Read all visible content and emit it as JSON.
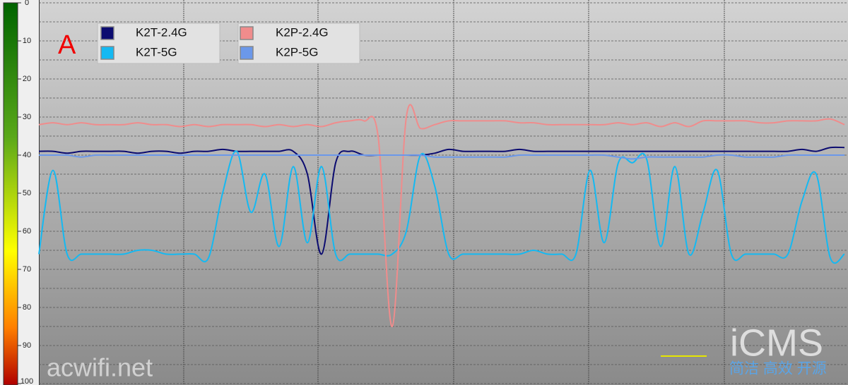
{
  "chart_data": {
    "type": "line",
    "annotation": "A",
    "watermarks": [
      "acwifi.net",
      "iCMS",
      "简洁 高效 开源"
    ],
    "x": [
      0,
      1,
      2,
      3,
      4,
      5,
      6,
      7,
      8,
      9,
      10,
      11,
      12,
      13,
      14,
      15,
      16,
      17,
      18,
      19,
      20,
      21,
      22,
      23,
      24,
      25,
      26,
      27,
      28,
      29,
      30,
      31,
      32,
      33,
      34,
      35,
      36,
      37,
      38,
      39,
      40,
      41,
      42,
      43,
      44,
      45,
      46,
      47,
      48,
      49,
      50,
      51,
      52,
      53,
      54,
      55,
      56,
      57
    ],
    "xlim": [
      0,
      57.25
    ],
    "xgrid": [
      10.25,
      19.75,
      29.35,
      38.9,
      48.5
    ],
    "ylim": [
      0,
      100
    ],
    "y_inverted": true,
    "yticks": [
      0,
      10,
      20,
      30,
      40,
      50,
      60,
      70,
      80,
      90,
      100
    ],
    "y_minor_ticks": [
      5,
      15,
      25,
      35,
      45,
      55,
      65,
      75,
      85,
      95
    ],
    "series": [
      {
        "name": "K2T-2.4G",
        "color": "#0b0b70",
        "values": [
          39,
          39,
          39.5,
          39,
          39,
          39,
          39,
          39.5,
          39,
          39,
          39.5,
          39,
          39,
          38.5,
          39,
          39,
          39,
          39,
          39,
          45,
          66,
          42,
          39,
          40,
          40,
          40,
          40,
          40,
          39.5,
          38.5,
          39,
          39,
          39,
          39,
          38.5,
          39,
          39,
          39,
          39,
          39,
          39,
          39,
          39,
          39,
          39,
          39,
          39,
          39,
          39,
          39,
          39,
          39,
          39,
          39,
          38.5,
          39,
          38,
          38
        ]
      },
      {
        "name": "K2T-5G",
        "color": "#14b9f2",
        "values": [
          66,
          44,
          66,
          66,
          66,
          66,
          66,
          65,
          65,
          66,
          66,
          66,
          67,
          50,
          39,
          55,
          45,
          64,
          43,
          63,
          43,
          66,
          66,
          66,
          66,
          66,
          60,
          40,
          48,
          66,
          66,
          66,
          66,
          66,
          66,
          65,
          66,
          66,
          66,
          44,
          63,
          42,
          42,
          41,
          64,
          43,
          66,
          55,
          44,
          66,
          66,
          66,
          66,
          66,
          52,
          45,
          67,
          66
        ]
      },
      {
        "name": "K2P-2.4G",
        "color": "#f08c8c",
        "values": [
          32,
          31.5,
          32,
          31.5,
          32,
          32,
          32,
          31.5,
          32,
          32,
          32.5,
          32,
          32.5,
          32,
          32,
          32,
          32.5,
          32,
          32.5,
          32,
          32.5,
          31.5,
          31,
          31,
          35,
          85,
          30,
          33,
          32,
          31,
          31,
          31,
          31,
          31,
          31.5,
          31.5,
          32,
          32,
          32,
          32,
          32,
          31.5,
          32,
          31.5,
          32.5,
          31.5,
          32.5,
          31,
          31,
          31,
          31,
          31.5,
          31.5,
          31,
          31,
          31,
          30.5,
          32
        ]
      },
      {
        "name": "K2P-5G",
        "color": "#6b98ea",
        "values": [
          40,
          40,
          40,
          40.5,
          40,
          40,
          40,
          40,
          40,
          40,
          40,
          40,
          40,
          40,
          40,
          40,
          40,
          40,
          40,
          40,
          40,
          40,
          40,
          40,
          40,
          40,
          40,
          40,
          40.5,
          40.5,
          40.5,
          40.5,
          40.5,
          40.5,
          40,
          40,
          40,
          40,
          40,
          40,
          40,
          40.5,
          41,
          40.5,
          40.5,
          40.5,
          40.5,
          40.5,
          40,
          40,
          40.5,
          40.5,
          40.5,
          40,
          40,
          40,
          40,
          40
        ]
      }
    ],
    "legend": "top-left",
    "grid": true
  }
}
